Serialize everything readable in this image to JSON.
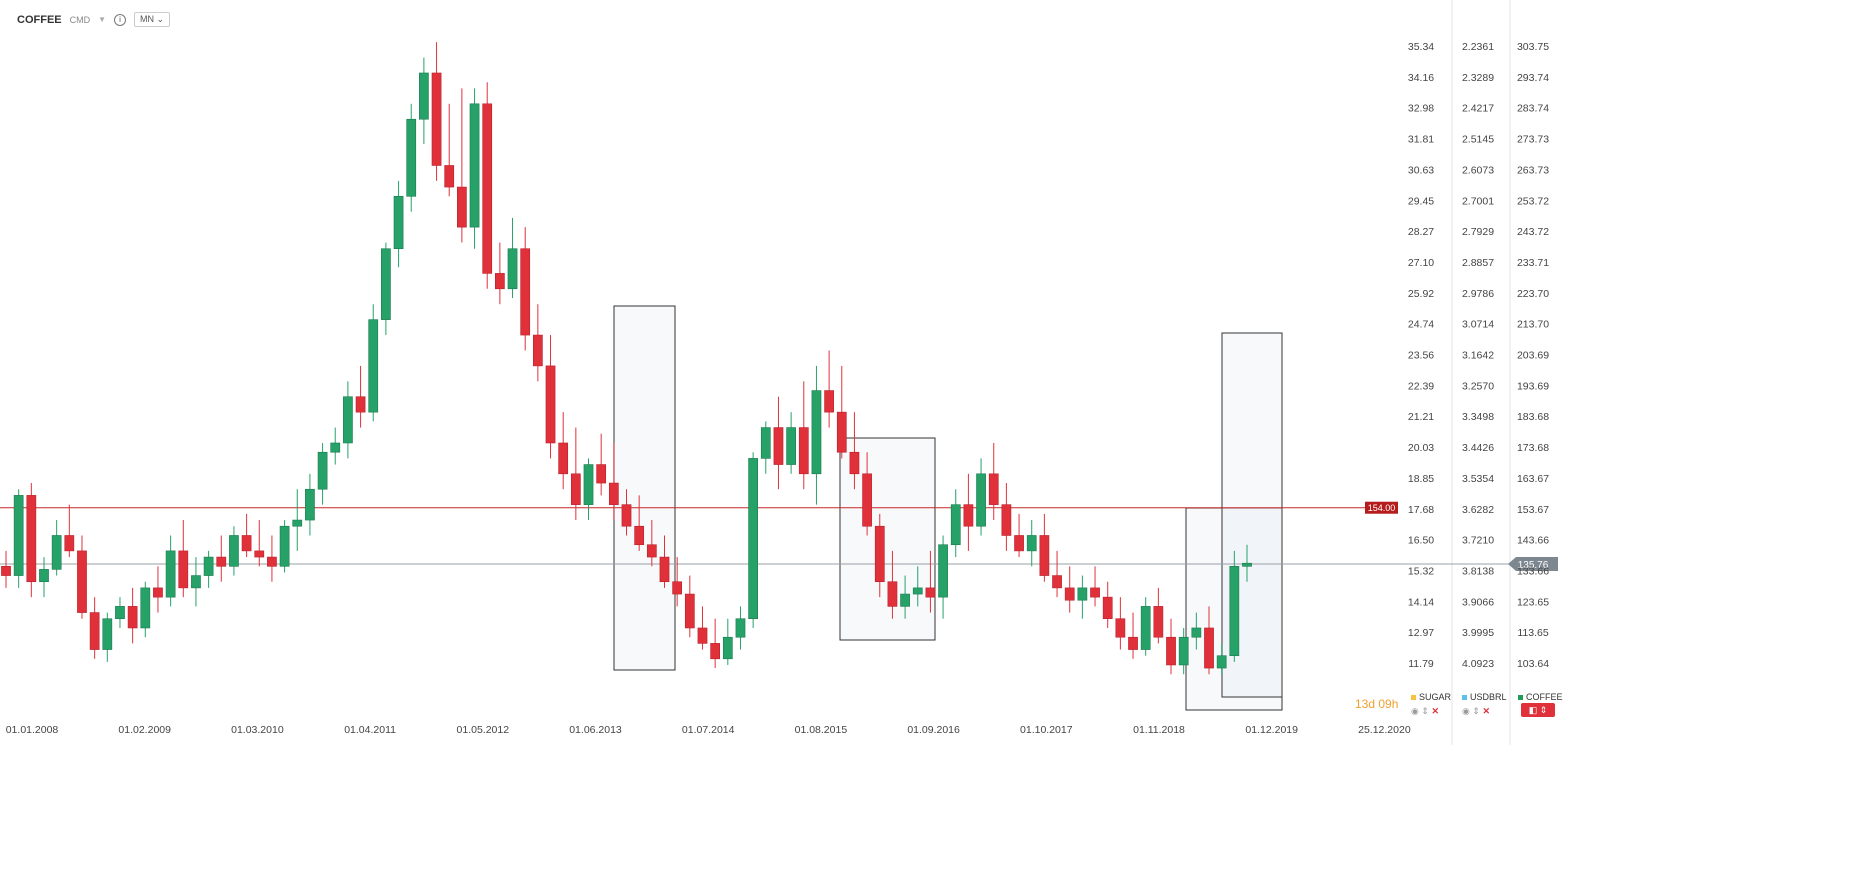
{
  "header": {
    "symbol": "COFFEE",
    "tag": "CMD",
    "timeframe": "MN"
  },
  "countdown": "13d 09h",
  "legend": [
    {
      "name": "SUGAR",
      "color": "#f5c242"
    },
    {
      "name": "USDBRL",
      "color": "#5bc0eb"
    },
    {
      "name": "COFFEE",
      "color": "#1f9d55"
    }
  ],
  "chart_data": {
    "type": "candlestick",
    "symbol": "COFFEE",
    "x_ticks": [
      "01.01.2008",
      "01.02.2009",
      "01.03.2010",
      "01.04.2011",
      "01.05.2012",
      "01.06.2013",
      "01.07.2014",
      "01.08.2015",
      "01.09.2016",
      "01.10.2017",
      "01.11.2018",
      "01.12.2019",
      "25.12.2020"
    ],
    "y_axis_right_1": [
      "35.34",
      "34.16",
      "32.98",
      "31.81",
      "30.63",
      "29.45",
      "28.27",
      "27.10",
      "25.92",
      "24.74",
      "23.56",
      "22.39",
      "21.21",
      "20.03",
      "18.85",
      "17.68",
      "16.50",
      "15.32",
      "14.14",
      "12.97",
      "11.79"
    ],
    "y_axis_right_2": [
      "2.2361",
      "2.3289",
      "2.4217",
      "2.5145",
      "2.6073",
      "2.7001",
      "2.7929",
      "2.8857",
      "2.9786",
      "3.0714",
      "3.1642",
      "3.2570",
      "3.3498",
      "3.4426",
      "3.5354",
      "3.6282",
      "3.7210",
      "3.8138",
      "3.9066",
      "3.9995",
      "4.0923"
    ],
    "y_axis_right_3": [
      "303.75",
      "293.74",
      "283.74",
      "273.73",
      "263.73",
      "253.72",
      "243.72",
      "233.71",
      "223.70",
      "213.70",
      "203.69",
      "193.69",
      "183.68",
      "173.68",
      "163.67",
      "153.67",
      "143.66",
      "133.66",
      "123.65",
      "113.65",
      "103.64"
    ],
    "horizontal_line_label": "154.00",
    "horizontal_line_value": 154.0,
    "current_price_label": "135.76",
    "current_price_value": 135.76,
    "ylim": [
      98,
      310
    ],
    "candles": [
      {
        "o": 135,
        "h": 140,
        "l": 128,
        "c": 132
      },
      {
        "o": 132,
        "h": 160,
        "l": 128,
        "c": 158
      },
      {
        "o": 158,
        "h": 162,
        "l": 125,
        "c": 130
      },
      {
        "o": 130,
        "h": 138,
        "l": 125,
        "c": 134
      },
      {
        "o": 134,
        "h": 150,
        "l": 132,
        "c": 145
      },
      {
        "o": 145,
        "h": 155,
        "l": 138,
        "c": 140
      },
      {
        "o": 140,
        "h": 145,
        "l": 118,
        "c": 120
      },
      {
        "o": 120,
        "h": 125,
        "l": 105,
        "c": 108
      },
      {
        "o": 108,
        "h": 120,
        "l": 104,
        "c": 118
      },
      {
        "o": 118,
        "h": 125,
        "l": 115,
        "c": 122
      },
      {
        "o": 122,
        "h": 128,
        "l": 110,
        "c": 115
      },
      {
        "o": 115,
        "h": 130,
        "l": 112,
        "c": 128
      },
      {
        "o": 128,
        "h": 135,
        "l": 120,
        "c": 125
      },
      {
        "o": 125,
        "h": 145,
        "l": 122,
        "c": 140
      },
      {
        "o": 140,
        "h": 150,
        "l": 125,
        "c": 128
      },
      {
        "o": 128,
        "h": 138,
        "l": 122,
        "c": 132
      },
      {
        "o": 132,
        "h": 140,
        "l": 128,
        "c": 138
      },
      {
        "o": 138,
        "h": 145,
        "l": 130,
        "c": 135
      },
      {
        "o": 135,
        "h": 148,
        "l": 132,
        "c": 145
      },
      {
        "o": 145,
        "h": 152,
        "l": 138,
        "c": 140
      },
      {
        "o": 140,
        "h": 150,
        "l": 135,
        "c": 138
      },
      {
        "o": 138,
        "h": 145,
        "l": 130,
        "c": 135
      },
      {
        "o": 135,
        "h": 150,
        "l": 133,
        "c": 148
      },
      {
        "o": 148,
        "h": 160,
        "l": 140,
        "c": 150
      },
      {
        "o": 150,
        "h": 165,
        "l": 145,
        "c": 160
      },
      {
        "o": 160,
        "h": 175,
        "l": 155,
        "c": 172
      },
      {
        "o": 172,
        "h": 180,
        "l": 168,
        "c": 175
      },
      {
        "o": 175,
        "h": 195,
        "l": 170,
        "c": 190
      },
      {
        "o": 190,
        "h": 200,
        "l": 180,
        "c": 185
      },
      {
        "o": 185,
        "h": 220,
        "l": 182,
        "c": 215
      },
      {
        "o": 215,
        "h": 240,
        "l": 210,
        "c": 238
      },
      {
        "o": 238,
        "h": 260,
        "l": 232,
        "c": 255
      },
      {
        "o": 255,
        "h": 285,
        "l": 250,
        "c": 280
      },
      {
        "o": 280,
        "h": 300,
        "l": 272,
        "c": 295
      },
      {
        "o": 295,
        "h": 305,
        "l": 260,
        "c": 265
      },
      {
        "o": 265,
        "h": 285,
        "l": 255,
        "c": 258
      },
      {
        "o": 258,
        "h": 290,
        "l": 240,
        "c": 245
      },
      {
        "o": 245,
        "h": 290,
        "l": 238,
        "c": 285
      },
      {
        "o": 285,
        "h": 292,
        "l": 225,
        "c": 230
      },
      {
        "o": 230,
        "h": 240,
        "l": 220,
        "c": 225
      },
      {
        "o": 225,
        "h": 248,
        "l": 222,
        "c": 238
      },
      {
        "o": 238,
        "h": 245,
        "l": 205,
        "c": 210
      },
      {
        "o": 210,
        "h": 220,
        "l": 195,
        "c": 200
      },
      {
        "o": 200,
        "h": 210,
        "l": 170,
        "c": 175
      },
      {
        "o": 175,
        "h": 185,
        "l": 160,
        "c": 165
      },
      {
        "o": 165,
        "h": 180,
        "l": 150,
        "c": 155
      },
      {
        "o": 155,
        "h": 170,
        "l": 150,
        "c": 168
      },
      {
        "o": 168,
        "h": 178,
        "l": 158,
        "c": 162
      },
      {
        "o": 162,
        "h": 175,
        "l": 150,
        "c": 155
      },
      {
        "o": 155,
        "h": 160,
        "l": 145,
        "c": 148
      },
      {
        "o": 148,
        "h": 158,
        "l": 140,
        "c": 142
      },
      {
        "o": 142,
        "h": 150,
        "l": 135,
        "c": 138
      },
      {
        "o": 138,
        "h": 145,
        "l": 128,
        "c": 130
      },
      {
        "o": 130,
        "h": 138,
        "l": 122,
        "c": 126
      },
      {
        "o": 126,
        "h": 132,
        "l": 112,
        "c": 115
      },
      {
        "o": 115,
        "h": 122,
        "l": 108,
        "c": 110
      },
      {
        "o": 110,
        "h": 118,
        "l": 102,
        "c": 105
      },
      {
        "o": 105,
        "h": 118,
        "l": 103,
        "c": 112
      },
      {
        "o": 112,
        "h": 122,
        "l": 108,
        "c": 118
      },
      {
        "o": 118,
        "h": 172,
        "l": 115,
        "c": 170
      },
      {
        "o": 170,
        "h": 182,
        "l": 165,
        "c": 180
      },
      {
        "o": 180,
        "h": 190,
        "l": 160,
        "c": 168
      },
      {
        "o": 168,
        "h": 185,
        "l": 165,
        "c": 180
      },
      {
        "o": 180,
        "h": 195,
        "l": 160,
        "c": 165
      },
      {
        "o": 165,
        "h": 200,
        "l": 155,
        "c": 192
      },
      {
        "o": 192,
        "h": 205,
        "l": 180,
        "c": 185
      },
      {
        "o": 185,
        "h": 200,
        "l": 170,
        "c": 172
      },
      {
        "o": 172,
        "h": 185,
        "l": 160,
        "c": 165
      },
      {
        "o": 165,
        "h": 172,
        "l": 145,
        "c": 148
      },
      {
        "o": 148,
        "h": 152,
        "l": 125,
        "c": 130
      },
      {
        "o": 130,
        "h": 140,
        "l": 118,
        "c": 122
      },
      {
        "o": 122,
        "h": 132,
        "l": 118,
        "c": 126
      },
      {
        "o": 126,
        "h": 135,
        "l": 122,
        "c": 128
      },
      {
        "o": 128,
        "h": 140,
        "l": 120,
        "c": 125
      },
      {
        "o": 125,
        "h": 145,
        "l": 118,
        "c": 142
      },
      {
        "o": 142,
        "h": 160,
        "l": 138,
        "c": 155
      },
      {
        "o": 155,
        "h": 165,
        "l": 140,
        "c": 148
      },
      {
        "o": 148,
        "h": 170,
        "l": 145,
        "c": 165
      },
      {
        "o": 165,
        "h": 175,
        "l": 150,
        "c": 155
      },
      {
        "o": 155,
        "h": 162,
        "l": 140,
        "c": 145
      },
      {
        "o": 145,
        "h": 152,
        "l": 138,
        "c": 140
      },
      {
        "o": 140,
        "h": 150,
        "l": 135,
        "c": 145
      },
      {
        "o": 145,
        "h": 152,
        "l": 130,
        "c": 132
      },
      {
        "o": 132,
        "h": 140,
        "l": 125,
        "c": 128
      },
      {
        "o": 128,
        "h": 135,
        "l": 120,
        "c": 124
      },
      {
        "o": 124,
        "h": 132,
        "l": 118,
        "c": 128
      },
      {
        "o": 128,
        "h": 135,
        "l": 122,
        "c": 125
      },
      {
        "o": 125,
        "h": 130,
        "l": 115,
        "c": 118
      },
      {
        "o": 118,
        "h": 125,
        "l": 108,
        "c": 112
      },
      {
        "o": 112,
        "h": 120,
        "l": 105,
        "c": 108
      },
      {
        "o": 108,
        "h": 125,
        "l": 106,
        "c": 122
      },
      {
        "o": 122,
        "h": 128,
        "l": 110,
        "c": 112
      },
      {
        "o": 112,
        "h": 118,
        "l": 100,
        "c": 103
      },
      {
        "o": 103,
        "h": 115,
        "l": 100,
        "c": 112
      },
      {
        "o": 112,
        "h": 120,
        "l": 108,
        "c": 115
      },
      {
        "o": 115,
        "h": 122,
        "l": 100,
        "c": 102
      },
      {
        "o": 102,
        "h": 110,
        "l": 100,
        "c": 106
      },
      {
        "o": 106,
        "h": 140,
        "l": 104,
        "c": 135
      },
      {
        "o": 135,
        "h": 142,
        "l": 130,
        "c": 136
      }
    ]
  }
}
